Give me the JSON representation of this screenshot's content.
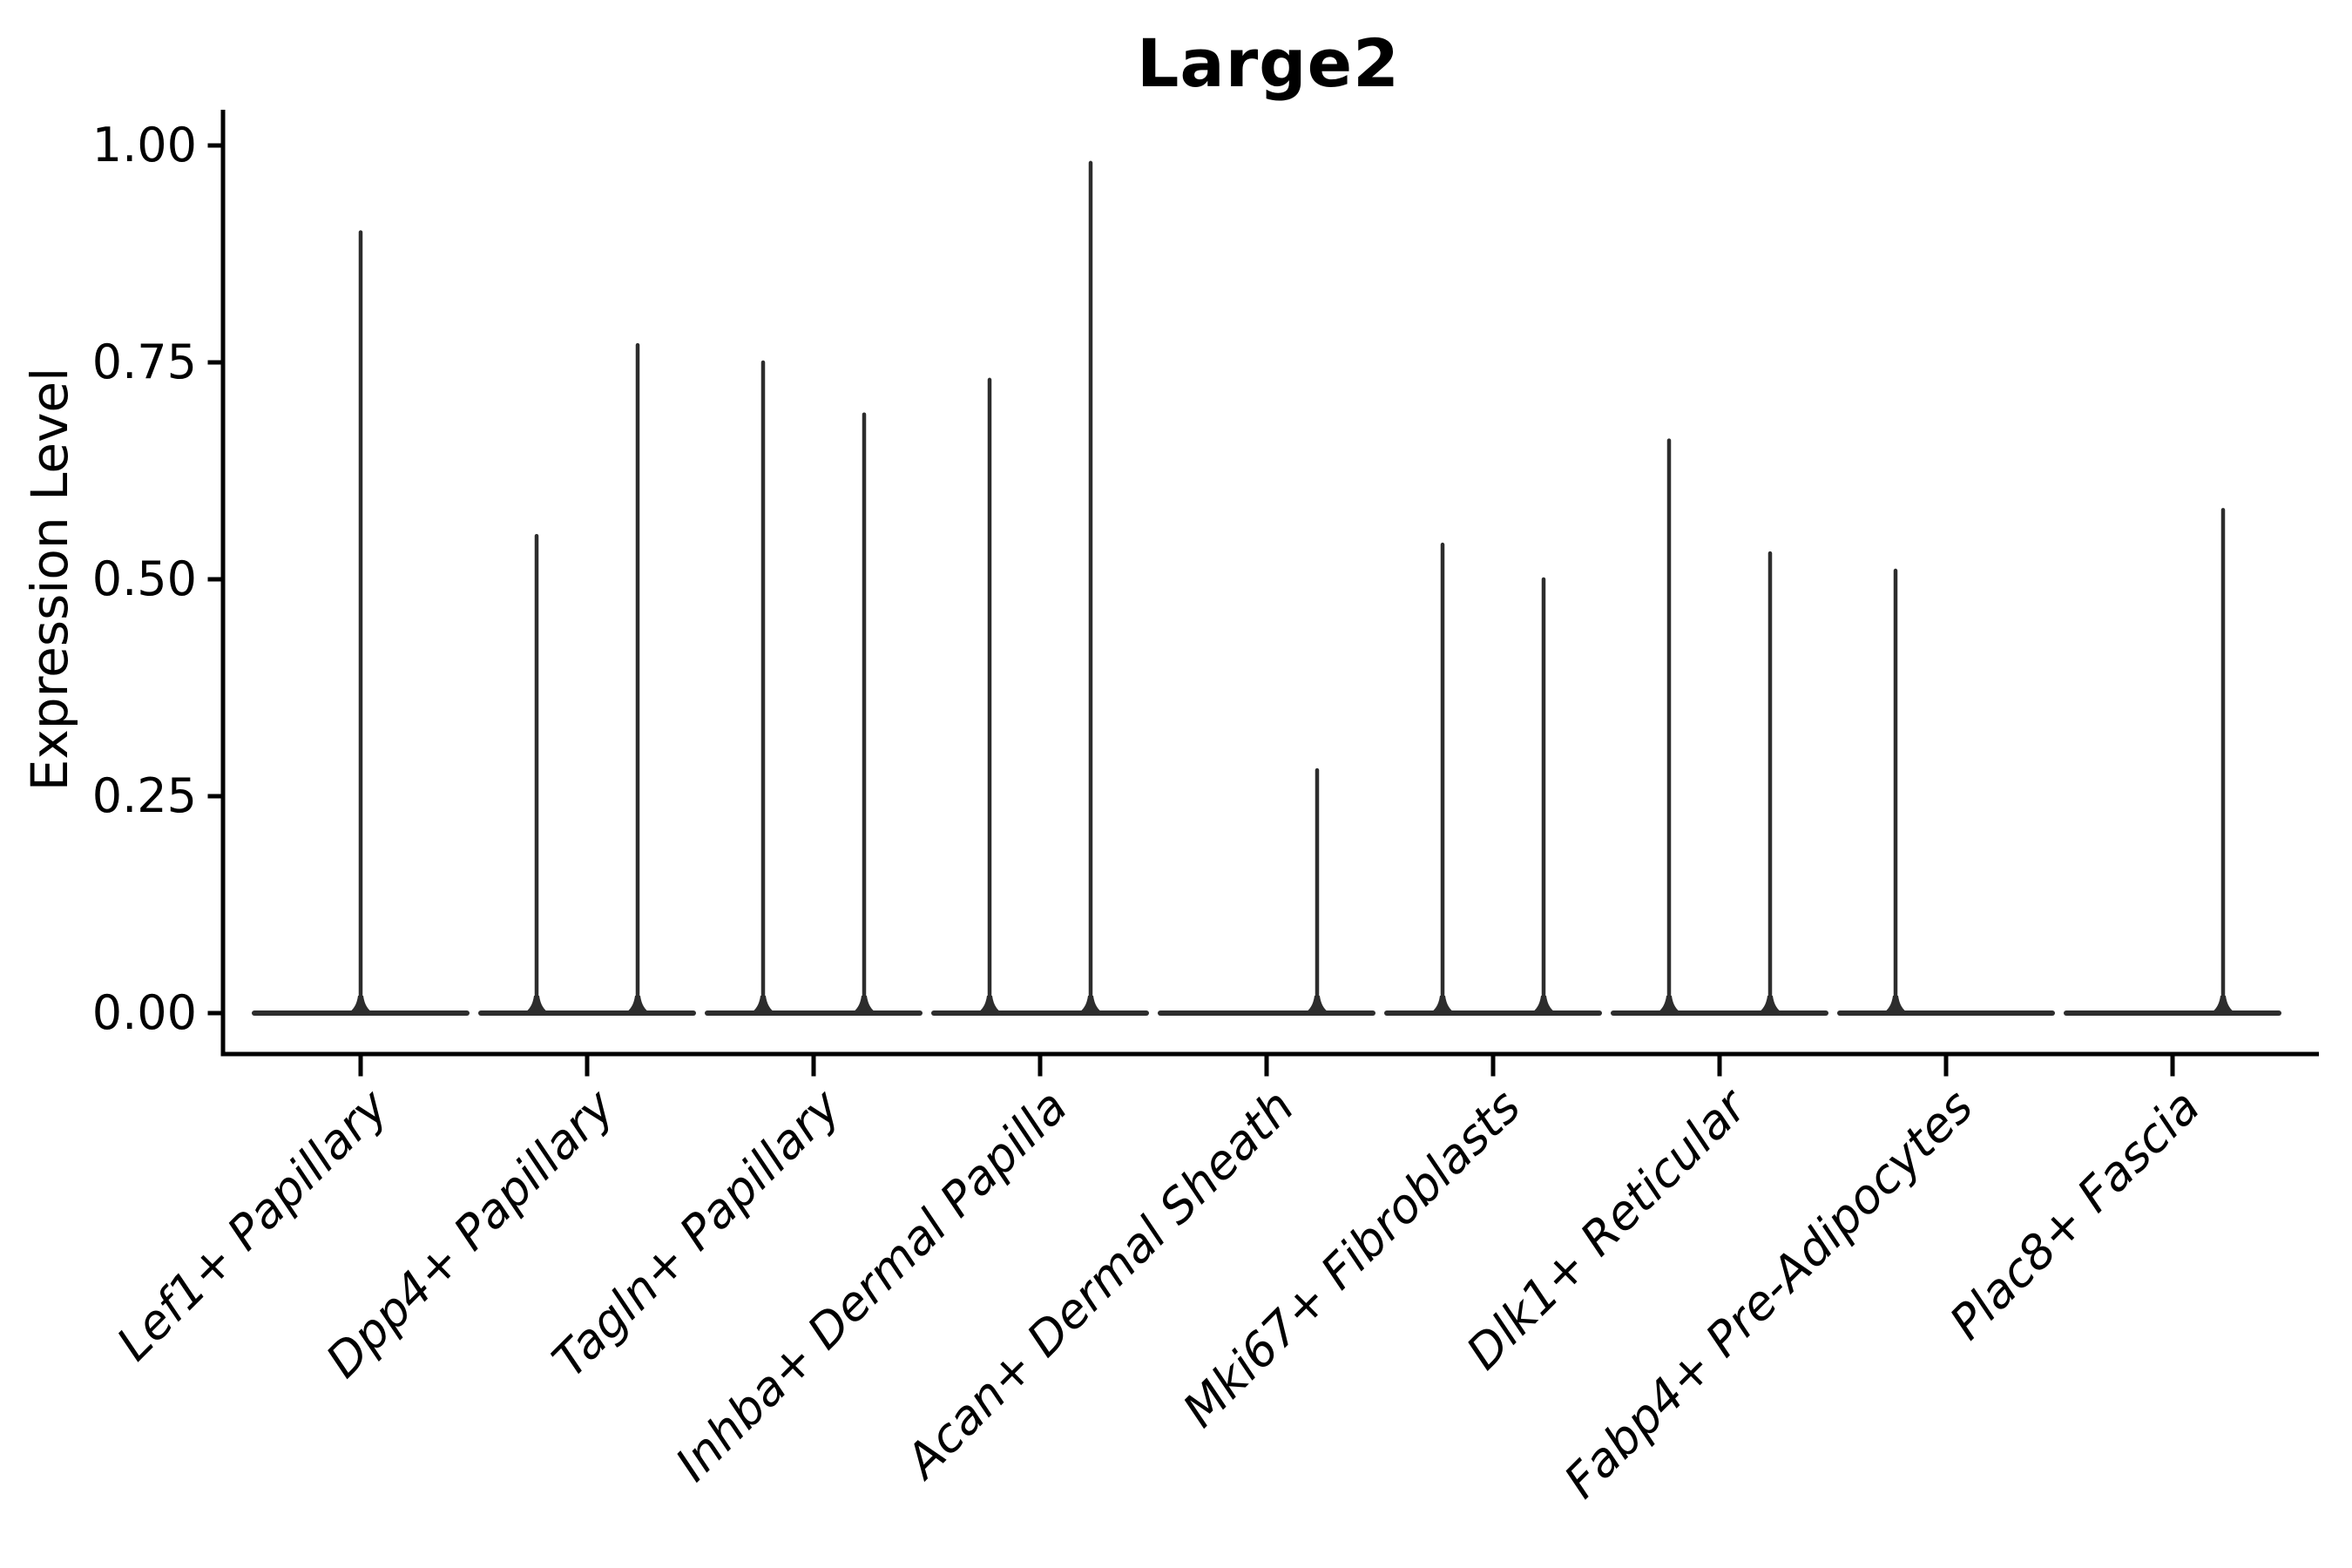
{
  "chart_data": {
    "type": "violin",
    "title": "Large2",
    "xlabel": "",
    "ylabel": "Expression Level",
    "ylim": [
      0.0,
      1.0
    ],
    "yticks": [
      0.0,
      0.25,
      0.5,
      0.75,
      1.0
    ],
    "ytick_labels": [
      "0.00",
      "0.25",
      "0.50",
      "0.75",
      "1.00"
    ],
    "grid": false,
    "legend_position": "none",
    "x_label_rotation_deg": 45,
    "line_color": "#2d2d2d",
    "axis_color": "#000000",
    "background_color": "#ffffff",
    "baseline_value": 0.0,
    "categories": [
      "Lef1+ Papillary",
      "Dpp4+ Papillary",
      "Tagln+ Papillary",
      "Inhba+ Dermal Papilla",
      "Acan+ Dermal Sheath",
      "Mki67+ Fibroblasts",
      "Dlk1+ Reticular",
      "Fabp4+ Pre-Adipocytes",
      "Plac8+ Fascia"
    ],
    "violins": [
      {
        "category": "Lef1+ Papillary",
        "position": "center",
        "max_expression": 0.9
      },
      {
        "category": "Dpp4+ Papillary",
        "position": "left",
        "max_expression": 0.55
      },
      {
        "category": "Dpp4+ Papillary",
        "position": "right",
        "max_expression": 0.77
      },
      {
        "category": "Tagln+ Papillary",
        "position": "left",
        "max_expression": 0.75
      },
      {
        "category": "Tagln+ Papillary",
        "position": "right",
        "max_expression": 0.69
      },
      {
        "category": "Inhba+ Dermal Papilla",
        "position": "left",
        "max_expression": 0.73
      },
      {
        "category": "Inhba+ Dermal Papilla",
        "position": "right",
        "max_expression": 0.98
      },
      {
        "category": "Acan+ Dermal Sheath",
        "position": "right",
        "max_expression": 0.28
      },
      {
        "category": "Mki67+ Fibroblasts",
        "position": "left",
        "max_expression": 0.54
      },
      {
        "category": "Mki67+ Fibroblasts",
        "position": "right",
        "max_expression": 0.5
      },
      {
        "category": "Dlk1+ Reticular",
        "position": "left",
        "max_expression": 0.66
      },
      {
        "category": "Dlk1+ Reticular",
        "position": "right",
        "max_expression": 0.53
      },
      {
        "category": "Fabp4+ Pre-Adipocytes",
        "position": "left",
        "max_expression": 0.51
      },
      {
        "category": "Plac8+ Fascia",
        "position": "right",
        "max_expression": 0.58
      }
    ]
  }
}
